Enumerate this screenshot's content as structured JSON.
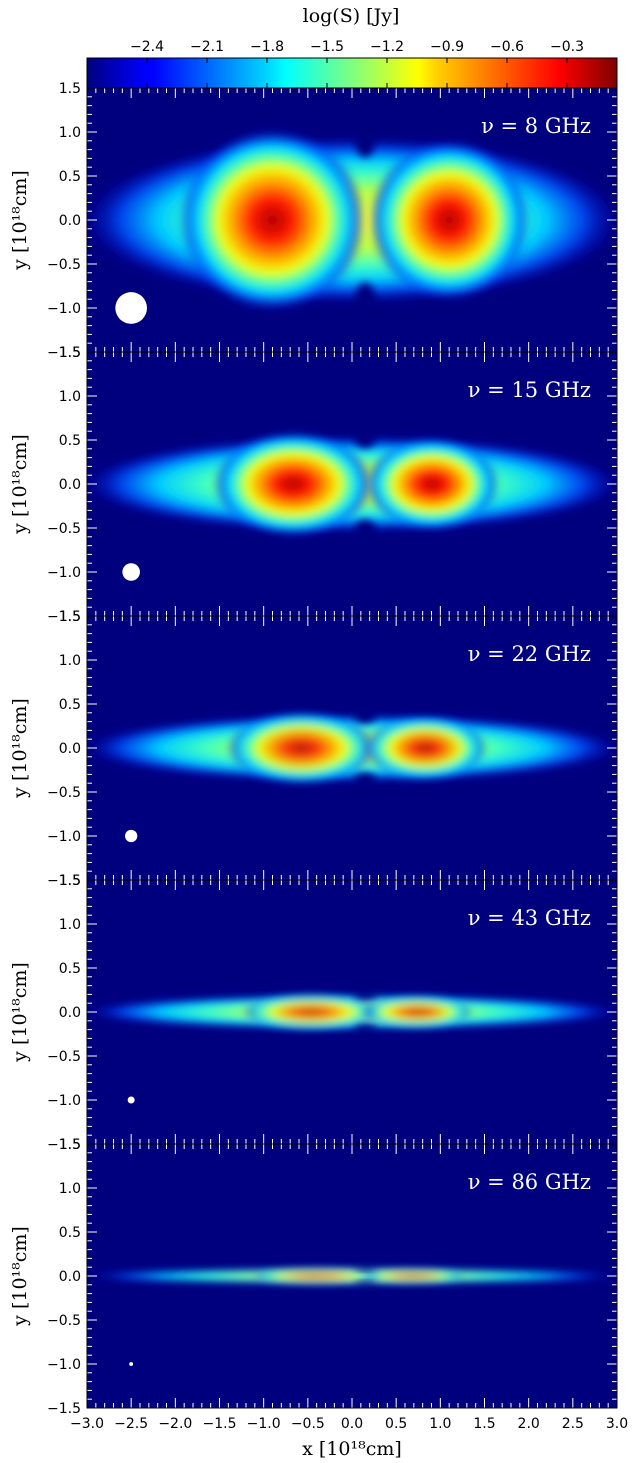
{
  "chart_data": {
    "type": "heatmap",
    "colorbar": {
      "label": "log(S) [Jy]",
      "ticks": [
        -2.4,
        -2.1,
        -1.8,
        -1.5,
        -1.2,
        -0.9,
        -0.6,
        -0.3
      ],
      "tick_labels": [
        "−2.4",
        "−2.1",
        "−1.8",
        "−1.5",
        "−1.2",
        "−0.9",
        "−0.6",
        "−0.3"
      ],
      "range": [
        -2.7,
        -0.05
      ],
      "colormap": "jet",
      "placement": "top"
    },
    "xlabel": "x [10¹⁸cm]",
    "ylabel": "y [10¹⁸cm]",
    "xlim": [
      -3.0,
      3.0
    ],
    "ylim": [
      -1.5,
      1.5
    ],
    "x_ticks": [
      -3.0,
      -2.5,
      -2.0,
      -1.5,
      -1.0,
      -0.5,
      0.0,
      0.5,
      1.0,
      1.5,
      2.0,
      2.5,
      3.0
    ],
    "x_tick_labels": [
      "−3.0",
      "−2.5",
      "−2.0",
      "−1.5",
      "−1.0",
      "−0.5",
      "0.0",
      "0.5",
      "1.0",
      "1.5",
      "2.0",
      "2.5",
      "3.0"
    ],
    "y_ticks": [
      -1.5,
      -1.0,
      -0.5,
      0.0,
      0.5,
      1.0,
      1.5
    ],
    "y_tick_labels": [
      "−1.5",
      "−1.0",
      "−0.5",
      "0.0",
      "0.5",
      "1.0",
      "1.5"
    ],
    "background_color": "#00007f",
    "beam_color": "#ffffff",
    "panels": [
      {
        "label": "ν = 8 GHz",
        "frequency_ghz": 8,
        "half_width": 0.82,
        "peak_log_s": -0.1,
        "beam": {
          "x": -2.5,
          "y": -1.0,
          "radius": 0.18
        }
      },
      {
        "label": "ν = 15 GHz",
        "frequency_ghz": 15,
        "half_width": 0.47,
        "peak_log_s": -0.35,
        "beam": {
          "x": -2.5,
          "y": -1.0,
          "radius": 0.1
        }
      },
      {
        "label": "ν = 22 GHz",
        "frequency_ghz": 22,
        "half_width": 0.33,
        "peak_log_s": -0.5,
        "beam": {
          "x": -2.5,
          "y": -1.0,
          "radius": 0.07
        }
      },
      {
        "label": "ν = 43 GHz",
        "frequency_ghz": 43,
        "half_width": 0.17,
        "peak_log_s": -0.7,
        "beam": {
          "x": -2.5,
          "y": -1.0,
          "radius": 0.04
        }
      },
      {
        "label": "ν = 86 GHz",
        "frequency_ghz": 86,
        "half_width": 0.075,
        "peak_log_s": -1.2,
        "beam": {
          "x": -2.5,
          "y": -1.0,
          "radius": 0.022
        }
      }
    ]
  }
}
